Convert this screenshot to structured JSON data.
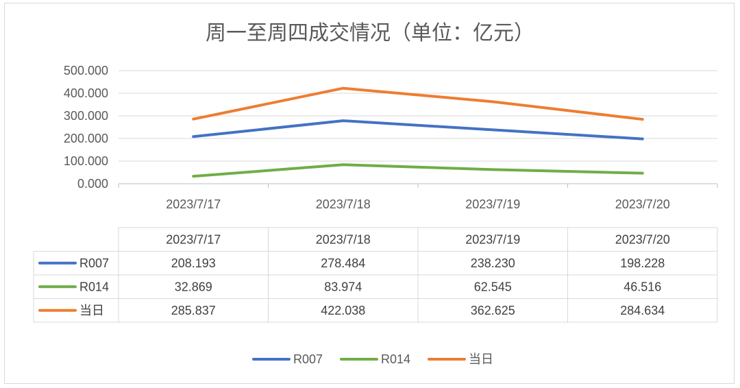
{
  "chart_data": {
    "type": "line",
    "title": "周一至周四成交情况（单位：亿元）",
    "categories": [
      "2023/7/17",
      "2023/7/18",
      "2023/7/19",
      "2023/7/20"
    ],
    "series": [
      {
        "name": "R007",
        "color": "#4472C4",
        "values": [
          208.193,
          278.484,
          238.23,
          198.228
        ],
        "labels": [
          "208.193",
          "278.484",
          "238.230",
          "198.228"
        ]
      },
      {
        "name": "R014",
        "color": "#70AD47",
        "values": [
          32.869,
          83.974,
          62.545,
          46.516
        ],
        "labels": [
          "32.869",
          "83.974",
          "62.545",
          "46.516"
        ]
      },
      {
        "name": "当日",
        "color": "#ED7D31",
        "values": [
          285.837,
          422.038,
          362.625,
          284.634
        ],
        "labels": [
          "285.837",
          "422.038",
          "362.625",
          "284.634"
        ]
      }
    ],
    "y_ticks": [
      "0.000",
      "100.000",
      "200.000",
      "300.000",
      "400.000",
      "500.000"
    ],
    "ylim": [
      0,
      500
    ],
    "grid": true,
    "legend": "bottom",
    "data_table": true
  }
}
